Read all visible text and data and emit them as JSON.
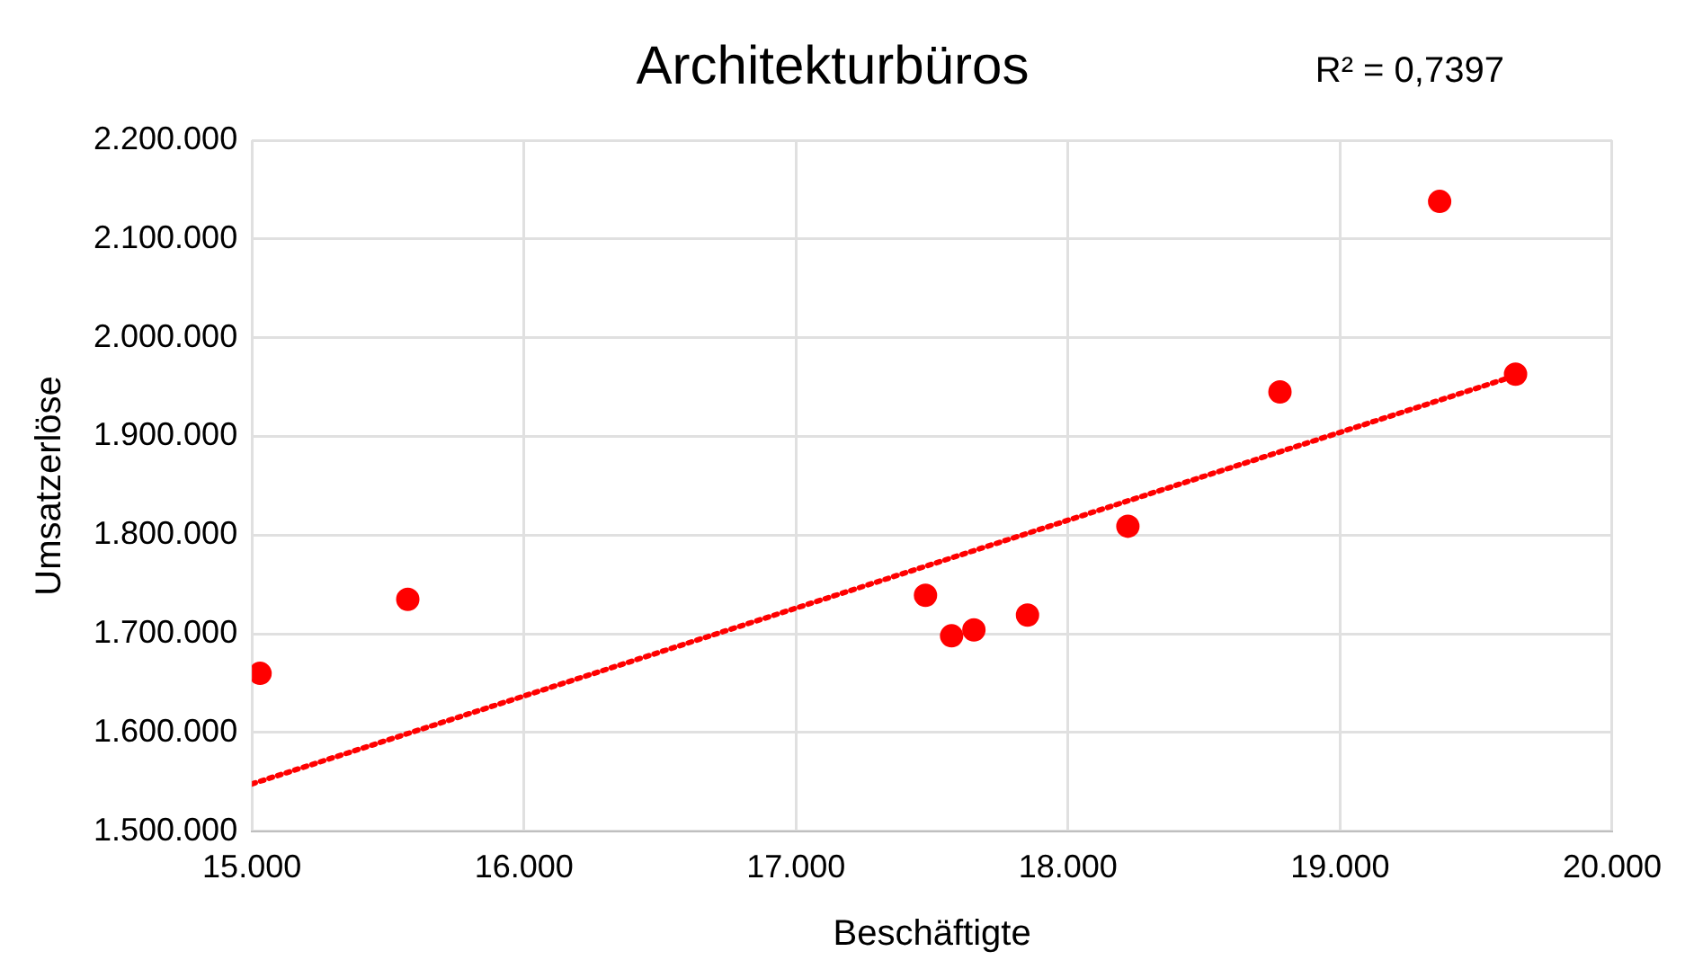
{
  "chart_data": {
    "type": "scatter",
    "title": "Architekturbüros",
    "xlabel": "Beschäftigte",
    "ylabel": "Umsatzerlöse",
    "annotations": [
      "R² = 0,7397"
    ],
    "series": [
      {
        "type": "scatter",
        "color": "#ff0000",
        "marker": "circle",
        "x": [
          15030,
          15573,
          17476,
          17572,
          17654,
          17851,
          18220,
          18779,
          19366,
          19645
        ],
        "values": [
          1660000,
          1735000,
          1739000,
          1698000,
          1704000,
          1719000,
          1809000,
          1945000,
          2138000,
          1963000
        ]
      },
      {
        "type": "line",
        "color": "#ff0000",
        "marker": "none",
        "line_style": "dotted",
        "x": [
          15000,
          19650
        ],
        "values": [
          1548000,
          1962000
        ]
      }
    ],
    "xlim": [
      15000,
      20000
    ],
    "xticks": [
      {
        "value": 15000,
        "label": "15.000"
      },
      {
        "value": 16000,
        "label": "16.000"
      },
      {
        "value": 17000,
        "label": "17.000"
      },
      {
        "value": 18000,
        "label": "18.000"
      },
      {
        "value": 19000,
        "label": "19.000"
      },
      {
        "value": 20000,
        "label": "20.000"
      }
    ],
    "ylim": [
      1500000,
      2200000
    ],
    "yticks": [
      {
        "value": 1500000,
        "label": "1.500.000"
      },
      {
        "value": 1600000,
        "label": "1.600.000"
      },
      {
        "value": 1700000,
        "label": "1.700.000"
      },
      {
        "value": 1800000,
        "label": "1.800.000"
      },
      {
        "value": 1900000,
        "label": "1.900.000"
      },
      {
        "value": 2000000,
        "label": "2.000.000"
      },
      {
        "value": 2100000,
        "label": "2.100.000"
      },
      {
        "value": 2200000,
        "label": "2.200.000"
      }
    ],
    "grid": true,
    "legend": false
  }
}
